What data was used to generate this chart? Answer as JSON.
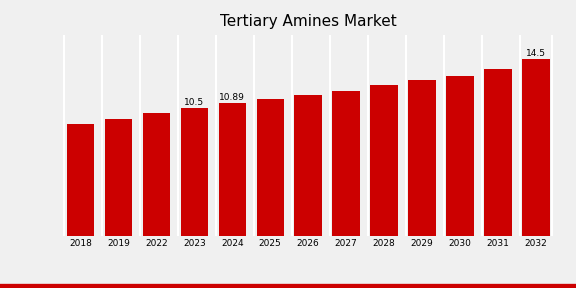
{
  "title": "Tertiary Amines Market",
  "categories": [
    "2018",
    "2019",
    "2022",
    "2023",
    "2024",
    "2025",
    "2026",
    "2027",
    "2028",
    "2029",
    "2030",
    "2031",
    "2032"
  ],
  "values": [
    9.2,
    9.6,
    10.1,
    10.5,
    10.89,
    11.2,
    11.55,
    11.9,
    12.35,
    12.75,
    13.1,
    13.7,
    14.5
  ],
  "bar_color": "#CC0000",
  "bar_annotations": {
    "2023": "10.5",
    "2024": "10.89",
    "2032": "14.5"
  },
  "background_color": "#f0f0f0",
  "plot_bg_color": "#f0f0f0",
  "bottom_border_color": "#CC0000",
  "ylim": [
    0,
    16.5
  ],
  "title_fontsize": 11,
  "label_fontsize": 6.5,
  "annotation_fontsize": 6.5,
  "tick_fontsize": 6.5
}
